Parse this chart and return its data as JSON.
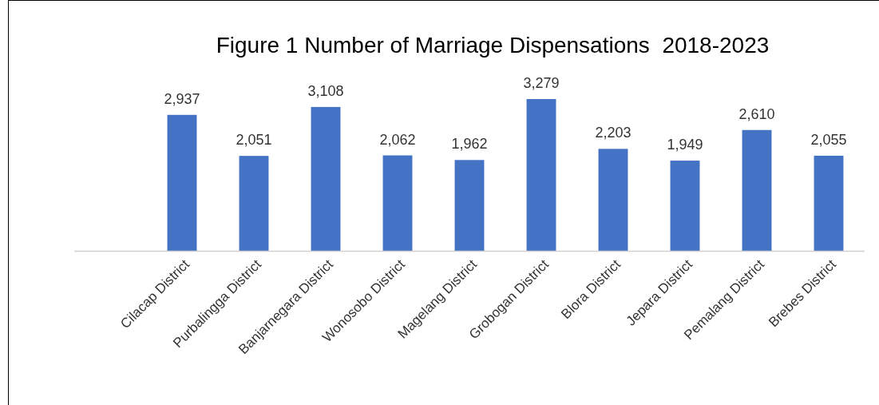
{
  "chart_data": {
    "type": "bar",
    "title": "Figure 1 Number of Marriage Dispensations  2018-2023",
    "categories": [
      null,
      "Cilacap District",
      "Purbalingga District",
      "Banjarnegara District",
      "Wonosobo District",
      "Magelang District",
      "Grobogan District",
      "Blora District",
      "Jepara District",
      "Pemalang District",
      "Brebes District"
    ],
    "values": [
      null,
      2937,
      2051,
      3108,
      2062,
      1962,
      3279,
      2203,
      1949,
      2610,
      2055
    ],
    "value_labels": [
      null,
      "2,937",
      "2,051",
      "3,108",
      "2,062",
      "1,962",
      "3,279",
      "2,203",
      "1,949",
      "2,610",
      "2,055"
    ],
    "color": "#4472c4",
    "tick_labels": "x"
  }
}
